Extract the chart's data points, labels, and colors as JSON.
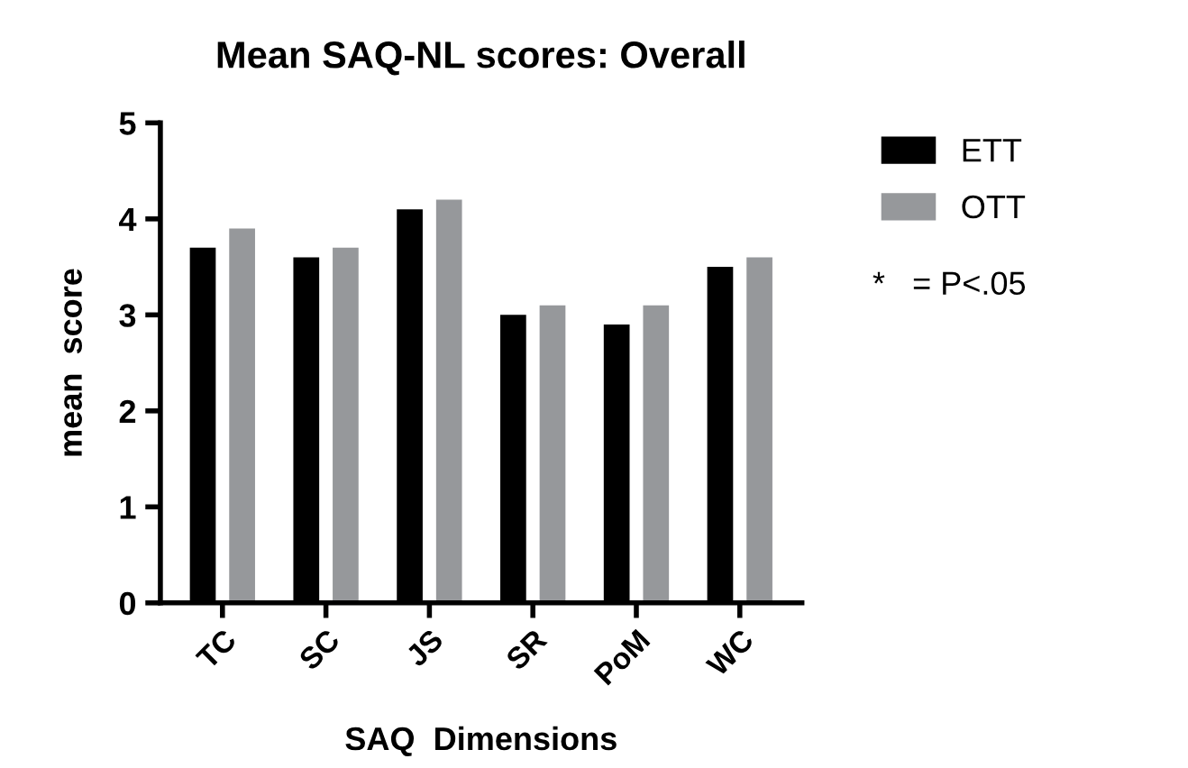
{
  "chart_data": {
    "type": "bar",
    "title": "Mean SAQ-NL scores: Overall",
    "xlabel": "SAQ  Dimensions",
    "ylabel": "mean  score",
    "categories": [
      "TC",
      "SC",
      "JS",
      "SR",
      "PoM",
      "WC"
    ],
    "series": [
      {
        "name": "ETT",
        "color": "#000000",
        "values": [
          3.7,
          3.6,
          4.1,
          3.0,
          2.9,
          3.5
        ]
      },
      {
        "name": "OTT",
        "color": "#96989b",
        "values": [
          3.9,
          3.7,
          4.2,
          3.1,
          3.1,
          3.6
        ]
      }
    ],
    "ylim": [
      0,
      5
    ],
    "yticks": [
      0,
      1,
      2,
      3,
      4,
      5
    ],
    "grid": false,
    "legend": "top right",
    "annotations": [
      "*   = P<.05"
    ]
  }
}
